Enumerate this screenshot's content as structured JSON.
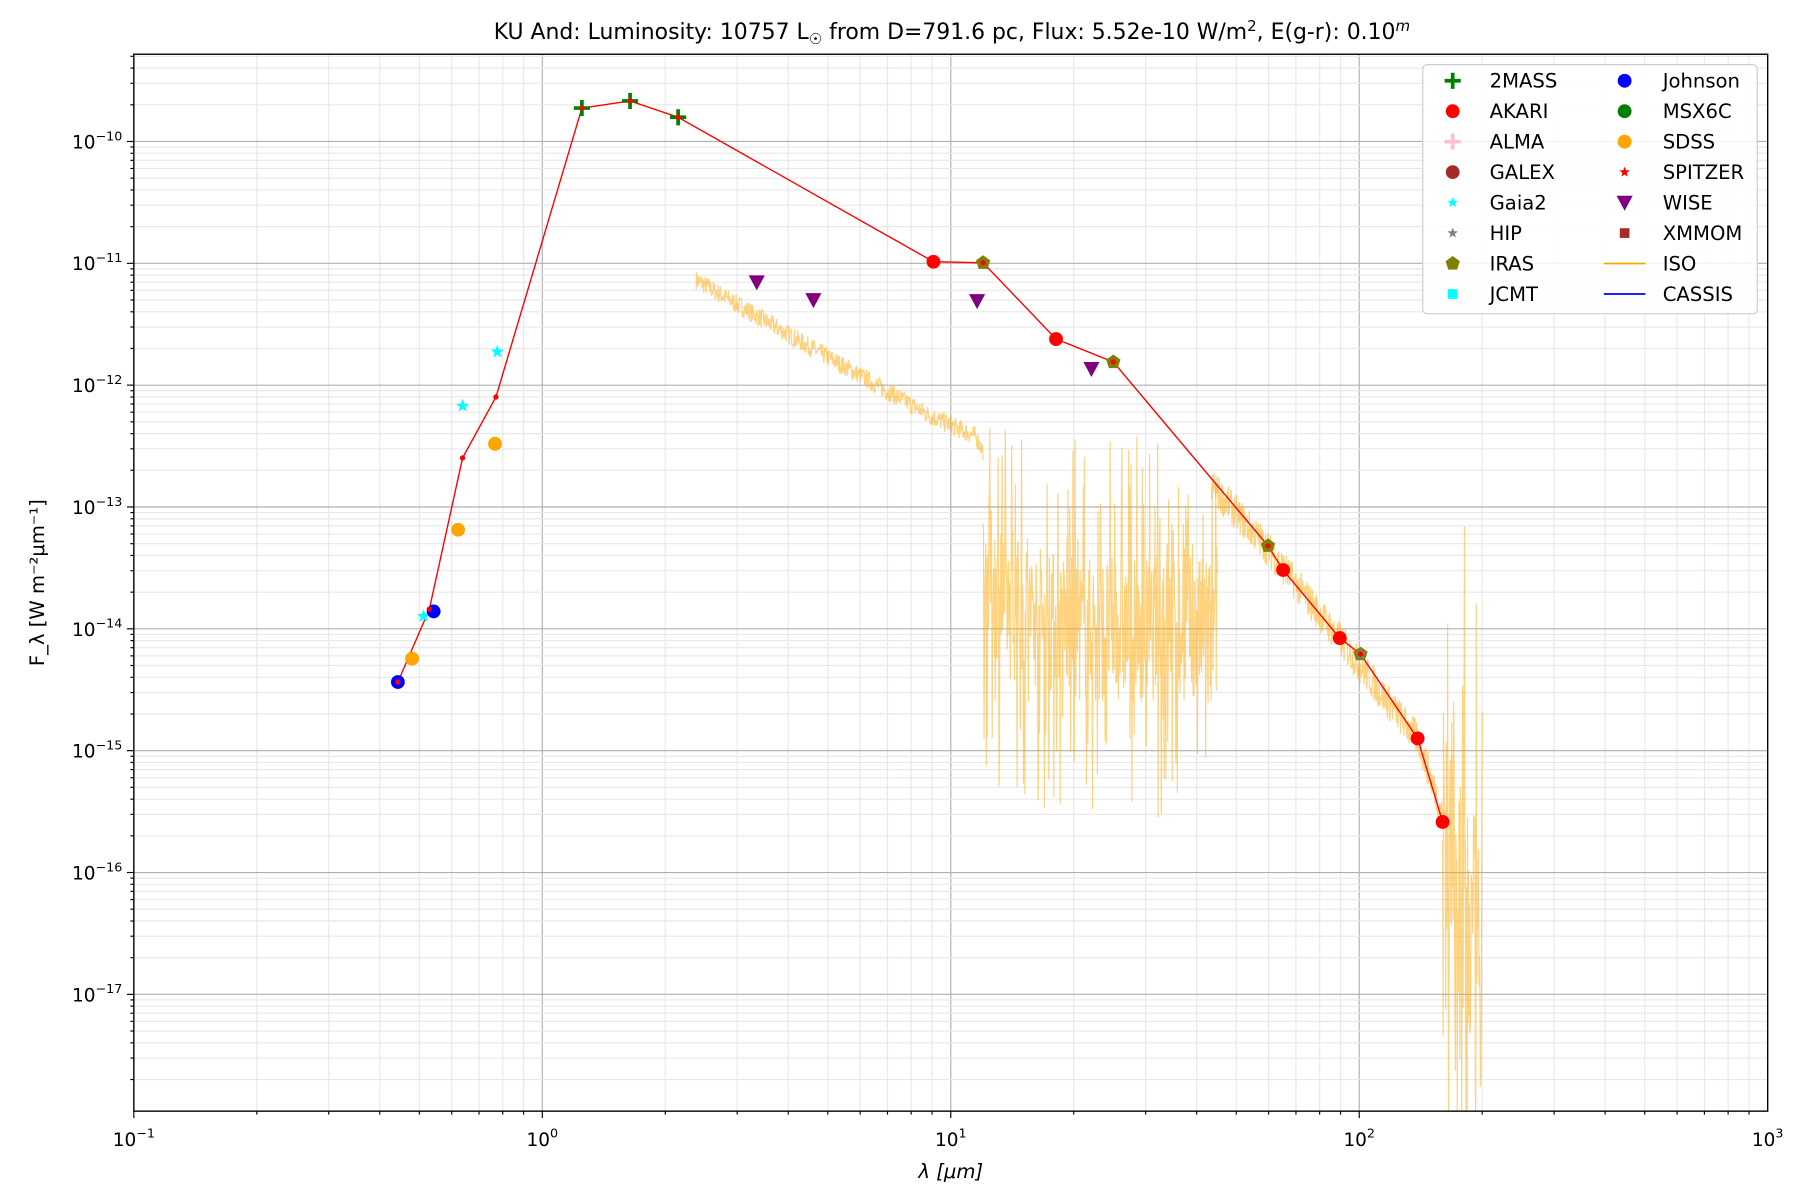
{
  "chart_data": {
    "type": "scatter",
    "title": {
      "star": "KU And:",
      "lum_label": "Luminosity: 10757 L",
      "sun": "☉",
      "rest": " from D=791.6 pc, Flux: 5.52e-10 W/m",
      "sq": "2",
      "ext": ", E(g-r): 0.10",
      "m": "m"
    },
    "xlabel": "λ [μm]",
    "ylabel": "F_λ [W m⁻²μm⁻¹]",
    "ylabel_parts": {
      "f": "F",
      "sub": "λ",
      "a": " [W m",
      "e1": "−2",
      "b": "μm",
      "e2": "−1",
      "c": "]"
    },
    "xscale": "log",
    "yscale": "log",
    "xlim": [
      0.1,
      1000
    ],
    "ylim": [
      1.1e-18,
      5.2e-10
    ],
    "grid": true,
    "legend_placement": "top-right",
    "xticks": [
      {
        "v": 0.1,
        "b": "10",
        "e": "−1"
      },
      {
        "v": 1,
        "b": "10",
        "e": "0"
      },
      {
        "v": 10,
        "b": "10",
        "e": "1"
      },
      {
        "v": 100,
        "b": "10",
        "e": "2"
      },
      {
        "v": 1000,
        "b": "10",
        "e": "3"
      }
    ],
    "yticks": [
      {
        "v": 1e-10,
        "b": "10",
        "e": "−10"
      },
      {
        "v": 1e-11,
        "b": "10",
        "e": "−11"
      },
      {
        "v": 1e-12,
        "b": "10",
        "e": "−12"
      },
      {
        "v": 1e-13,
        "b": "10",
        "e": "−13"
      },
      {
        "v": 1e-14,
        "b": "10",
        "e": "−14"
      },
      {
        "v": 1e-15,
        "b": "10",
        "e": "−15"
      },
      {
        "v": 1e-16,
        "b": "10",
        "e": "−16"
      },
      {
        "v": 1e-17,
        "b": "10",
        "e": "−17"
      }
    ],
    "model": {
      "color": "#ff0000",
      "x": [
        0.443,
        0.529,
        0.638,
        0.77,
        1.25,
        1.64,
        2.15,
        9.07,
        12.0,
        18.1,
        25.0,
        59.8,
        65.1,
        89.6,
        100.7,
        139,
        160
      ],
      "y": [
        3.66e-15,
        1.45e-14,
        2.53e-13,
        8e-13,
        1.88e-10,
        2.15e-10,
        1.58e-10,
        1.03e-11,
        1.01e-11,
        2.39e-12,
        1.55e-12,
        4.8e-14,
        3.04e-14,
        8.4e-15,
        6.2e-15,
        1.26e-15,
        2.6e-16
      ]
    },
    "series": [
      {
        "name": "2MASS",
        "marker": "plus",
        "color": "#008000",
        "x": [
          1.25,
          1.64,
          2.15
        ],
        "y": [
          1.88e-10,
          2.15e-10,
          1.58e-10
        ]
      },
      {
        "name": "AKARI",
        "marker": "circle",
        "color": "#ff0000",
        "x": [
          9.07,
          18.1,
          65.1,
          89.6,
          139,
          160
        ],
        "y": [
          1.03e-11,
          2.39e-12,
          3.04e-14,
          8.4e-15,
          1.26e-15,
          2.6e-16
        ]
      },
      {
        "name": "ALMA",
        "marker": "plus",
        "color": "#ffc0cb",
        "x": [],
        "y": []
      },
      {
        "name": "GALEX",
        "marker": "circle",
        "color": "#a52a2a",
        "x": [],
        "y": []
      },
      {
        "name": "Gaia2",
        "marker": "star",
        "color": "#00ffff",
        "x": [
          0.512,
          0.638,
          0.776
        ],
        "y": [
          1.27e-14,
          6.75e-13,
          1.88e-12
        ]
      },
      {
        "name": "HIP",
        "marker": "star",
        "color": "#808080",
        "x": [
          100.7
        ],
        "y": [
          6.2e-15
        ]
      },
      {
        "name": "IRAS",
        "marker": "pentagon",
        "color": "#808000",
        "x": [
          12.0,
          25.0,
          59.8,
          100.7
        ],
        "y": [
          1.01e-11,
          1.55e-12,
          4.8e-14,
          6.2e-15
        ]
      },
      {
        "name": "JCMT",
        "marker": "square",
        "color": "#00ffff",
        "x": [],
        "y": []
      },
      {
        "name": "Johnson",
        "marker": "circle",
        "color": "#0000ff",
        "x": [
          0.443,
          0.542
        ],
        "y": [
          3.66e-15,
          1.39e-14
        ]
      },
      {
        "name": "MSX6C",
        "marker": "circle",
        "color": "#008000",
        "x": [],
        "y": []
      },
      {
        "name": "SDSS",
        "marker": "circle",
        "color": "#ffa500",
        "x": [
          0.48,
          0.622,
          0.766
        ],
        "y": [
          5.7e-15,
          6.5e-14,
          3.3e-13
        ]
      },
      {
        "name": "SPITZER",
        "marker": "star",
        "color": "#ff0000",
        "x": [],
        "y": []
      },
      {
        "name": "WISE",
        "marker": "tri",
        "color": "#800080",
        "x": [
          3.35,
          4.61,
          11.6,
          22.1
        ],
        "y": [
          6.98e-12,
          5e-12,
          4.9e-12,
          1.36e-12
        ]
      },
      {
        "name": "XMMOM",
        "marker": "square",
        "color": "#a52a2a",
        "x": [],
        "y": []
      },
      {
        "name": "ISO",
        "marker": "line",
        "color": "#ffa500",
        "x": [],
        "y": []
      },
      {
        "name": "CASSIS",
        "marker": "line",
        "color": "#0000ff",
        "x": [],
        "y": []
      }
    ],
    "iso_spectrum": {
      "color": "#ffa500",
      "segments": [
        {
          "x": [
            2.38,
            4.0,
            6.0,
            9.0,
            11.5,
            12.0
          ],
          "y": [
            7.3e-12,
            2.6e-12,
            1.2e-12,
            5.5e-13,
            3.8e-13,
            2.9e-13
          ],
          "noise": 0.08
        },
        {
          "x": [
            12.0,
            14.0,
            20.0,
            30.0,
            45.0
          ],
          "y": [
            3e-14,
            1.5e-14,
            1e-14,
            1e-14,
            1e-14
          ],
          "noise": 1.0
        },
        {
          "x": [
            43.5,
            60,
            90,
            140,
            160
          ],
          "y": [
            1.5e-13,
            4.5e-14,
            8e-15,
            1.2e-15,
            3e-16
          ],
          "noise": 0.15
        },
        {
          "x": [
            160,
            200
          ],
          "y": [
            3e-16,
            1e-17
          ],
          "noise": 2.0
        }
      ]
    }
  }
}
